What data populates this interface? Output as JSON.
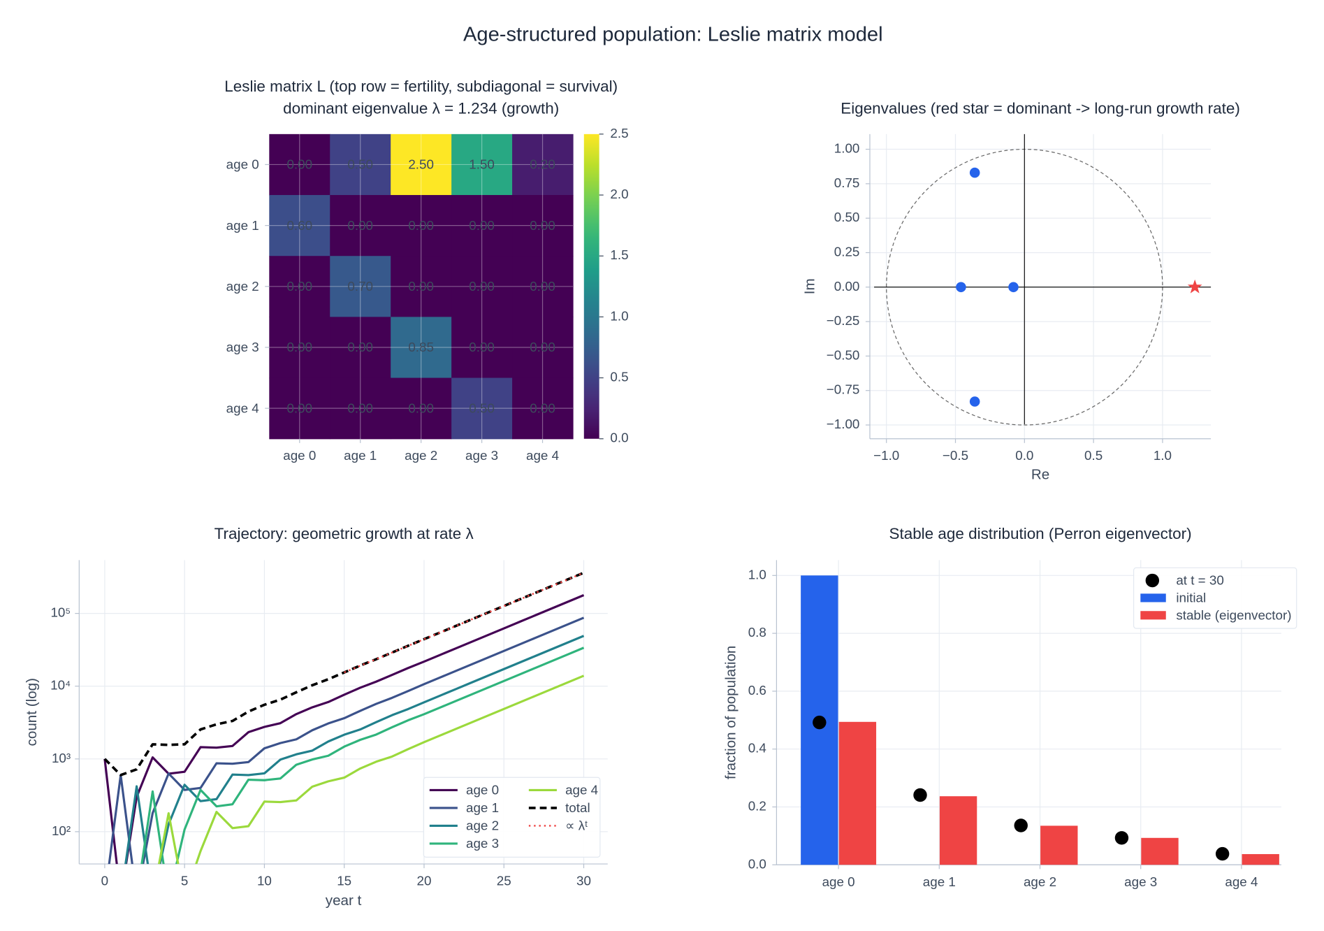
{
  "title": "Age-structured population:  Leslie matrix model",
  "chart_data": [
    {
      "type": "heatmap",
      "title": "Leslie matrix L  (top row = fertility, subdiagonal = survival)",
      "subtitle": "dominant eigenvalue  λ = 1.234  (growth)",
      "x_categories": [
        "age 0",
        "age 1",
        "age 2",
        "age 3",
        "age 4"
      ],
      "y_categories": [
        "age 0",
        "age 1",
        "age 2",
        "age 3",
        "age 4"
      ],
      "values": [
        [
          0,
          0.5,
          2.5,
          1.5,
          0.2
        ],
        [
          0.6,
          0,
          0,
          0,
          0
        ],
        [
          0,
          0.7,
          0,
          0,
          0
        ],
        [
          0,
          0,
          0.85,
          0,
          0
        ],
        [
          0,
          0,
          0,
          0.5,
          0
        ]
      ],
      "value_labels": [
        [
          "0.00",
          "0.50",
          "2.50",
          "1.50",
          "0.20"
        ],
        [
          "0.60",
          "0.00",
          "0.00",
          "0.00",
          "0.00"
        ],
        [
          "0.00",
          "0.70",
          "0.00",
          "0.00",
          "0.00"
        ],
        [
          "0.00",
          "0.00",
          "0.85",
          "0.00",
          "0.00"
        ],
        [
          "0.00",
          "0.00",
          "0.00",
          "0.50",
          "0.00"
        ]
      ],
      "colormap": "viridis",
      "colorbar_lim": [
        0,
        2.5
      ],
      "colorbar_ticks": [
        {
          "value": 0,
          "label": "0.0"
        },
        0.5,
        {
          "value": 1,
          "label": "1.0"
        },
        1.5,
        {
          "value": 2,
          "label": "2.0"
        },
        2.5
      ]
    },
    {
      "type": "scatter",
      "title": "Eigenvalues  (red star = dominant -> long-run growth rate)",
      "xlabel": "Re",
      "ylabel": "Im",
      "x": [
        -0.08,
        -0.46,
        -0.36,
        -0.36
      ],
      "y": [
        0,
        0,
        0.83,
        -0.83
      ],
      "color": "#2563eb",
      "highlight": {
        "x": 1.234,
        "y": 0,
        "color": "#ef4444",
        "marker": "star"
      },
      "unit_circle": true,
      "grid": true,
      "xlim": [
        -1.12,
        1.35
      ],
      "ylim": [
        -1.1,
        1.11
      ],
      "xticks": [
        {
          "value": -1,
          "label": "−1.0"
        },
        {
          "value": -0.5,
          "label": "−0.5"
        },
        {
          "value": 0,
          "label": "0.0"
        },
        0.5,
        {
          "value": 1,
          "label": "1.0"
        }
      ],
      "yticks": [
        {
          "value": 1,
          "label": "1.00"
        },
        0.75,
        {
          "value": 0.5,
          "label": "0.50"
        },
        0.25,
        {
          "value": 0,
          "label": "0.00"
        },
        {
          "value": -0.25,
          "label": "−0.25"
        },
        {
          "value": -0.5,
          "label": "−0.50"
        },
        {
          "value": -0.75,
          "label": "−0.75"
        },
        {
          "value": -1,
          "label": "−1.00"
        }
      ]
    },
    {
      "type": "line",
      "title": "Trajectory:  geometric growth at rate  λ",
      "xlabel": "year  t",
      "ylabel": "count (log)",
      "log_y": true,
      "grid": true,
      "legend": "lower right",
      "legend_columns": 2,
      "x": [
        0,
        1,
        2,
        3,
        4,
        5,
        6,
        7,
        8,
        9,
        10,
        11,
        12,
        13,
        14,
        15,
        16,
        17,
        18,
        19,
        20,
        21,
        22,
        23,
        24,
        25,
        26,
        27,
        28,
        29,
        30
      ],
      "xlim": [
        -1.6,
        31.5
      ],
      "xticks": [
        0,
        5,
        10,
        15,
        20,
        25,
        30
      ],
      "ylim": [
        36,
        540000
      ],
      "yticks": [
        {
          "value": 100,
          "label": "10²"
        },
        {
          "value": 1000,
          "label": "10³"
        },
        {
          "value": 10000,
          "label": "10⁴"
        },
        {
          "value": 100000,
          "label": "10⁵"
        }
      ],
      "series": [
        {
          "name": "age 0",
          "color": "#440154",
          "dash": "solid",
          "values": [
            1000,
            0,
            300,
            1050,
            626,
            666,
            1451,
            1429,
            1507,
            2331,
            2754,
            3099,
            4132,
            5123,
            6051,
            7633,
            9518,
            11534,
            14293,
            17757,
            21768,
            26862,
            33148,
            40905,
            50476,
            62287,
            76863,
            94849,
            117045,
            144430,
            178228
          ]
        },
        {
          "name": "age 1",
          "color": "#3b528b",
          "dash": "solid",
          "values": [
            0,
            600,
            0,
            180,
            630,
            375,
            399,
            871,
            858,
            904,
            1399,
            1652,
            1859,
            2479,
            3074,
            3630,
            4580,
            5711,
            6920,
            8576,
            10654,
            13147,
            16224,
            20020,
            24704,
            30485,
            37619,
            46422,
            57285,
            70689,
            87231
          ]
        },
        {
          "name": "age 2",
          "color": "#21808c",
          "dash": "solid",
          "values": [
            0,
            0,
            420,
            0,
            126,
            441,
            263,
            280,
            609,
            600,
            633,
            979,
            1157,
            1301,
            1735,
            2152,
            2541,
            3206,
            3997,
            4844,
            6003,
            7408,
            9141,
            11280,
            13920,
            17177,
            21197,
            26156,
            32277,
            39830,
            49150
          ]
        },
        {
          "name": "age 3",
          "color": "#2fb47c",
          "dash": "solid",
          "values": [
            0,
            0,
            0,
            357,
            0,
            107,
            375,
            223,
            238,
            518,
            510,
            538,
            832,
            983,
            1106,
            1475,
            1829,
            2160,
            2725,
            3398,
            4118,
            5082,
            6271,
            7738,
            9549,
            11783,
            14541,
            17943,
            22142,
            27323,
            33716
          ]
        },
        {
          "name": "age 4",
          "color": "#9bd93c",
          "dash": "solid",
          "values": [
            0,
            0,
            0,
            0,
            179,
            0,
            54,
            187,
            112,
            119,
            259,
            255,
            269,
            416,
            492,
            553,
            738,
            915,
            1080,
            1362,
            1699,
            2097,
            2587,
            3192,
            3940,
            4861,
            5999,
            7403,
            9135,
            11273,
            13911
          ]
        },
        {
          "name": "total",
          "color": "#000000",
          "dash": "dashed",
          "values": [
            1000,
            600,
            720,
            1587,
            1560,
            1589,
            2541,
            2990,
            3323,
            4472,
            5554,
            6523,
            8248,
            10302,
            12457,
            15443,
            19204,
            23475,
            29015,
            35937,
            44242,
            54595,
            67372,
            83138,
            102592,
            126597,
            156219,
            192773,
            237881,
            293543,
            362236
          ]
        },
        {
          "name": "∝ λᵗ",
          "color": "#ef4444",
          "dash": "dotted",
          "values": [
            null,
            null,
            null,
            null,
            null,
            null,
            null,
            null,
            null,
            null,
            null,
            null,
            null,
            null,
            null,
            15443,
            19057,
            23516,
            29019,
            35809,
            44189,
            54529,
            67290,
            83037,
            102468,
            126444,
            156032,
            192543,
            237598,
            293196,
            361804
          ]
        }
      ]
    },
    {
      "type": "bar",
      "title": "Stable age distribution  (Perron eigenvector)",
      "ylabel": "fraction of population",
      "legend": "upper right",
      "grid": true,
      "categories": [
        "age 0",
        "age 1",
        "age 2",
        "age 3",
        "age 4"
      ],
      "ylim": [
        0,
        1.053
      ],
      "yticks": [
        {
          "value": 0,
          "label": "0.0"
        },
        0.2,
        0.4,
        0.6,
        0.8,
        {
          "value": 1,
          "label": "1.0"
        }
      ],
      "series": [
        {
          "name": "at t = 30",
          "kind": "point",
          "color": "#000000",
          "values": [
            0.492,
            0.241,
            0.136,
            0.093,
            0.038
          ]
        },
        {
          "name": "initial",
          "kind": "bar",
          "color": "#2563eb",
          "values": [
            1,
            0,
            0,
            0,
            0
          ]
        },
        {
          "name": "stable (eigenvector)",
          "kind": "bar",
          "color": "#ef4444",
          "values": [
            0.494,
            0.237,
            0.135,
            0.093,
            0.037
          ]
        }
      ]
    }
  ]
}
